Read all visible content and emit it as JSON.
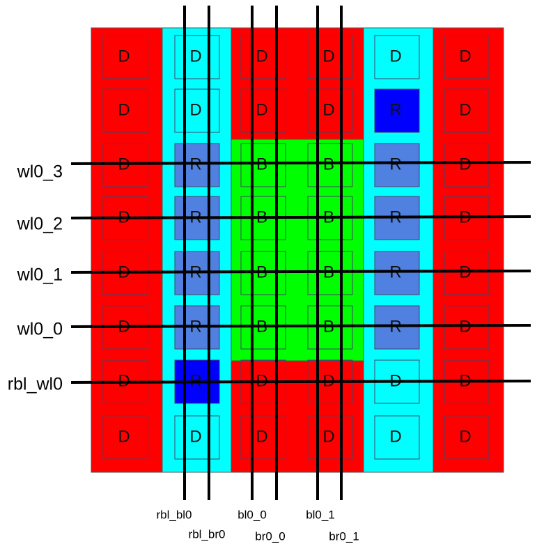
{
  "cells": [
    [
      "D",
      "D",
      "D",
      "D",
      "D",
      "D"
    ],
    [
      "D",
      "D",
      "D",
      "D",
      "R",
      "D"
    ],
    [
      "D",
      "R",
      "B",
      "B",
      "R",
      "D"
    ],
    [
      "D",
      "R",
      "B",
      "B",
      "R",
      "D"
    ],
    [
      "D",
      "R",
      "B",
      "B",
      "R",
      "D"
    ],
    [
      "D",
      "R",
      "B",
      "B",
      "R",
      "D"
    ],
    [
      "D",
      "R",
      "D",
      "D",
      "D",
      "D"
    ],
    [
      "D",
      "D",
      "D",
      "D",
      "D",
      "D"
    ]
  ],
  "wordlines": [
    "wl0_3",
    "wl0_2",
    "wl0_1",
    "wl0_0",
    "rbl_wl0"
  ],
  "bitlines": [
    "rbl_bl0",
    "rbl_br0",
    "bl0_0",
    "br0_0",
    "bl0_1",
    "br0_1"
  ]
}
